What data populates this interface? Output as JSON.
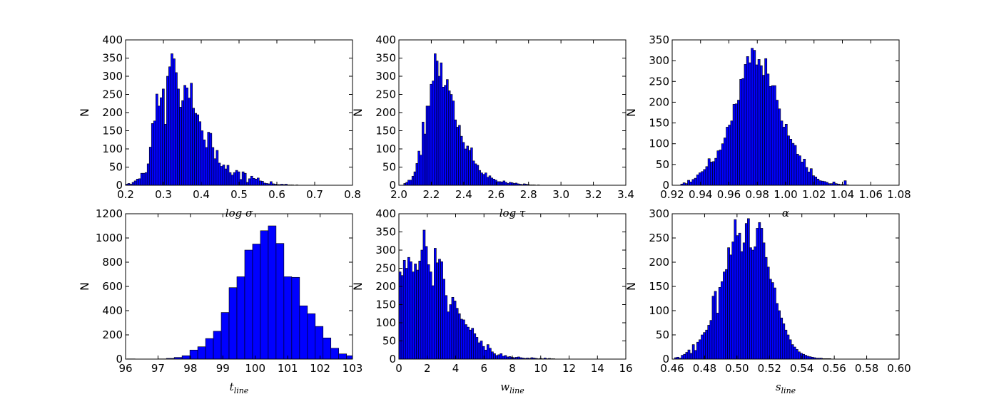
{
  "chart_data": [
    {
      "type": "bar",
      "panel": "top-left",
      "xlabel": "log σ",
      "ylabel": "N",
      "xlim": [
        0.2,
        0.8
      ],
      "ylim": [
        0,
        400
      ],
      "xticks": [
        "0.2",
        "0.3",
        "0.4",
        "0.5",
        "0.6",
        "0.7",
        "0.8"
      ],
      "yticks": [
        "0",
        "50",
        "100",
        "150",
        "200",
        "250",
        "300",
        "350",
        "400"
      ],
      "bar_color": "#0000ff",
      "bin_start": 0.2,
      "bin_width": 0.0057,
      "values": [
        3,
        5,
        3,
        8,
        12,
        17,
        18,
        33,
        33,
        35,
        59,
        105,
        170,
        177,
        251,
        218,
        241,
        265,
        168,
        300,
        326,
        362,
        348,
        310,
        265,
        215,
        233,
        275,
        268,
        240,
        281,
        212,
        198,
        194,
        175,
        150,
        125,
        104,
        146,
        143,
        104,
        73,
        96,
        61,
        52,
        56,
        45,
        55,
        35,
        28,
        35,
        41,
        37,
        16,
        37,
        33,
        8,
        18,
        25,
        19,
        17,
        20,
        12,
        11,
        6,
        5,
        4,
        10,
        4,
        3,
        2,
        2,
        3,
        2,
        3,
        1,
        1,
        1,
        0,
        1,
        0,
        0,
        0,
        0,
        0,
        0,
        0,
        0,
        0,
        0
      ]
    },
    {
      "type": "bar",
      "panel": "top-middle",
      "xlabel": "log τ",
      "ylabel": "N",
      "xlim": [
        2.0,
        3.4
      ],
      "ylim": [
        0,
        400
      ],
      "xticks": [
        "2.0",
        "2.2",
        "2.4",
        "2.6",
        "2.8",
        "3.0",
        "3.2",
        "3.4"
      ],
      "yticks": [
        "0",
        "50",
        "100",
        "150",
        "200",
        "250",
        "300",
        "350",
        "400"
      ],
      "bar_color": "#0000ff",
      "bin_start": 2.03,
      "bin_width": 0.0125,
      "values": [
        5,
        8,
        14,
        14,
        25,
        37,
        60,
        94,
        83,
        174,
        141,
        218,
        218,
        278,
        287,
        362,
        342,
        300,
        337,
        270,
        275,
        291,
        260,
        250,
        232,
        180,
        160,
        165,
        135,
        118,
        100,
        108,
        96,
        103,
        67,
        59,
        55,
        41,
        34,
        30,
        34,
        22,
        26,
        20,
        17,
        14,
        10,
        10,
        9,
        12,
        8,
        5,
        8,
        7,
        5,
        6,
        4,
        3,
        2,
        4,
        3,
        2,
        1,
        1,
        1,
        0,
        1,
        0,
        0,
        0,
        0,
        0,
        0,
        0,
        0,
        0,
        0,
        0,
        0,
        0
      ]
    },
    {
      "type": "bar",
      "panel": "top-right",
      "xlabel": "α",
      "ylabel": "N",
      "xlim": [
        0.92,
        1.08
      ],
      "ylim": [
        0,
        350
      ],
      "xticks": [
        "0.92",
        "0.94",
        "0.96",
        "0.98",
        "1.00",
        "1.02",
        "1.04",
        "1.06",
        "1.08"
      ],
      "yticks": [
        "0",
        "50",
        "100",
        "150",
        "200",
        "250",
        "300",
        "350"
      ],
      "bar_color": "#0000ff",
      "bin_start": 0.926,
      "bin_width": 0.0016,
      "values": [
        3,
        6,
        4,
        12,
        8,
        14,
        17,
        25,
        30,
        33,
        38,
        45,
        64,
        56,
        57,
        65,
        83,
        85,
        100,
        114,
        140,
        145,
        155,
        195,
        196,
        205,
        255,
        257,
        291,
        310,
        295,
        330,
        325,
        290,
        303,
        288,
        265,
        305,
        268,
        238,
        240,
        240,
        205,
        184,
        155,
        140,
        147,
        119,
        111,
        101,
        96,
        75,
        71,
        56,
        63,
        43,
        32,
        40,
        23,
        20,
        15,
        11,
        10,
        9,
        7,
        4,
        4,
        8,
        4,
        3,
        2,
        2,
        11,
        1,
        0,
        0,
        0,
        0,
        0,
        0,
        0,
        0,
        0,
        0,
        0,
        0,
        0,
        0,
        0,
        0
      ]
    },
    {
      "type": "bar",
      "panel": "bottom-left",
      "xlabel": "t_line",
      "ylabel": "N",
      "xlim": [
        96,
        103
      ],
      "ylim": [
        0,
        1200
      ],
      "xticks": [
        "96",
        "97",
        "98",
        "99",
        "100",
        "101",
        "102",
        "103"
      ],
      "yticks": [
        "0",
        "200",
        "400",
        "600",
        "800",
        "1000",
        "1200"
      ],
      "bar_color": "#0000ff",
      "bin_start": 96.05,
      "bin_width": 0.2417,
      "values": [
        2,
        0,
        1,
        1,
        2,
        6,
        14,
        28,
        75,
        102,
        170,
        230,
        385,
        590,
        680,
        900,
        950,
        1060,
        1100,
        955,
        680,
        675,
        440,
        375,
        270,
        175,
        90,
        43,
        28,
        12,
        4,
        2
      ]
    },
    {
      "type": "bar",
      "panel": "bottom-middle",
      "xlabel": "w_line",
      "ylabel": "N",
      "xlim": [
        0,
        16
      ],
      "ylim": [
        0,
        400
      ],
      "xticks": [
        "0",
        "2",
        "4",
        "6",
        "8",
        "10",
        "12",
        "14",
        "16"
      ],
      "yticks": [
        "0",
        "50",
        "100",
        "150",
        "200",
        "250",
        "300",
        "350",
        "400"
      ],
      "bar_color": "#0000ff",
      "bin_start": 0,
      "bin_width": 0.155,
      "values": [
        240,
        230,
        272,
        250,
        280,
        268,
        240,
        262,
        245,
        270,
        300,
        355,
        310,
        260,
        240,
        202,
        305,
        265,
        275,
        268,
        220,
        175,
        130,
        150,
        170,
        160,
        140,
        125,
        110,
        108,
        95,
        88,
        80,
        85,
        70,
        60,
        45,
        50,
        35,
        25,
        40,
        30,
        20,
        15,
        10,
        12,
        15,
        8,
        10,
        6,
        7,
        5,
        4,
        5,
        6,
        4,
        3,
        2,
        3,
        2,
        4,
        3,
        2,
        1,
        2,
        1,
        3,
        1,
        2,
        1,
        1,
        0,
        0,
        0,
        0,
        0,
        0,
        0,
        0,
        0,
        0,
        0,
        0,
        0,
        0,
        0,
        0,
        0,
        0,
        0,
        0,
        0,
        0,
        0,
        0,
        0,
        0,
        0,
        0,
        0
      ]
    },
    {
      "type": "bar",
      "panel": "bottom-right",
      "xlabel": "s_line",
      "ylabel": "N",
      "xlim": [
        0.46,
        0.6
      ],
      "ylim": [
        0,
        300
      ],
      "xticks": [
        "0.46",
        "0.48",
        "0.50",
        "0.52",
        "0.54",
        "0.56",
        "0.58",
        "0.60"
      ],
      "yticks": [
        "0",
        "50",
        "100",
        "150",
        "200",
        "250",
        "300"
      ],
      "bar_color": "#0000ff",
      "bin_start": 0.4615,
      "bin_width": 0.00136,
      "values": [
        3,
        4,
        2,
        8,
        10,
        14,
        19,
        12,
        30,
        18,
        35,
        40,
        50,
        55,
        60,
        70,
        80,
        130,
        140,
        95,
        148,
        160,
        180,
        185,
        230,
        215,
        242,
        288,
        255,
        260,
        222,
        240,
        280,
        290,
        230,
        225,
        232,
        270,
        282,
        270,
        240,
        210,
        190,
        165,
        158,
        147,
        115,
        100,
        85,
        73,
        60,
        50,
        40,
        30,
        25,
        20,
        15,
        12,
        10,
        8,
        6,
        5,
        4,
        3,
        2,
        2,
        2,
        1,
        1,
        1,
        1,
        0,
        0,
        0,
        0,
        0,
        0,
        0,
        0,
        0
      ]
    }
  ]
}
